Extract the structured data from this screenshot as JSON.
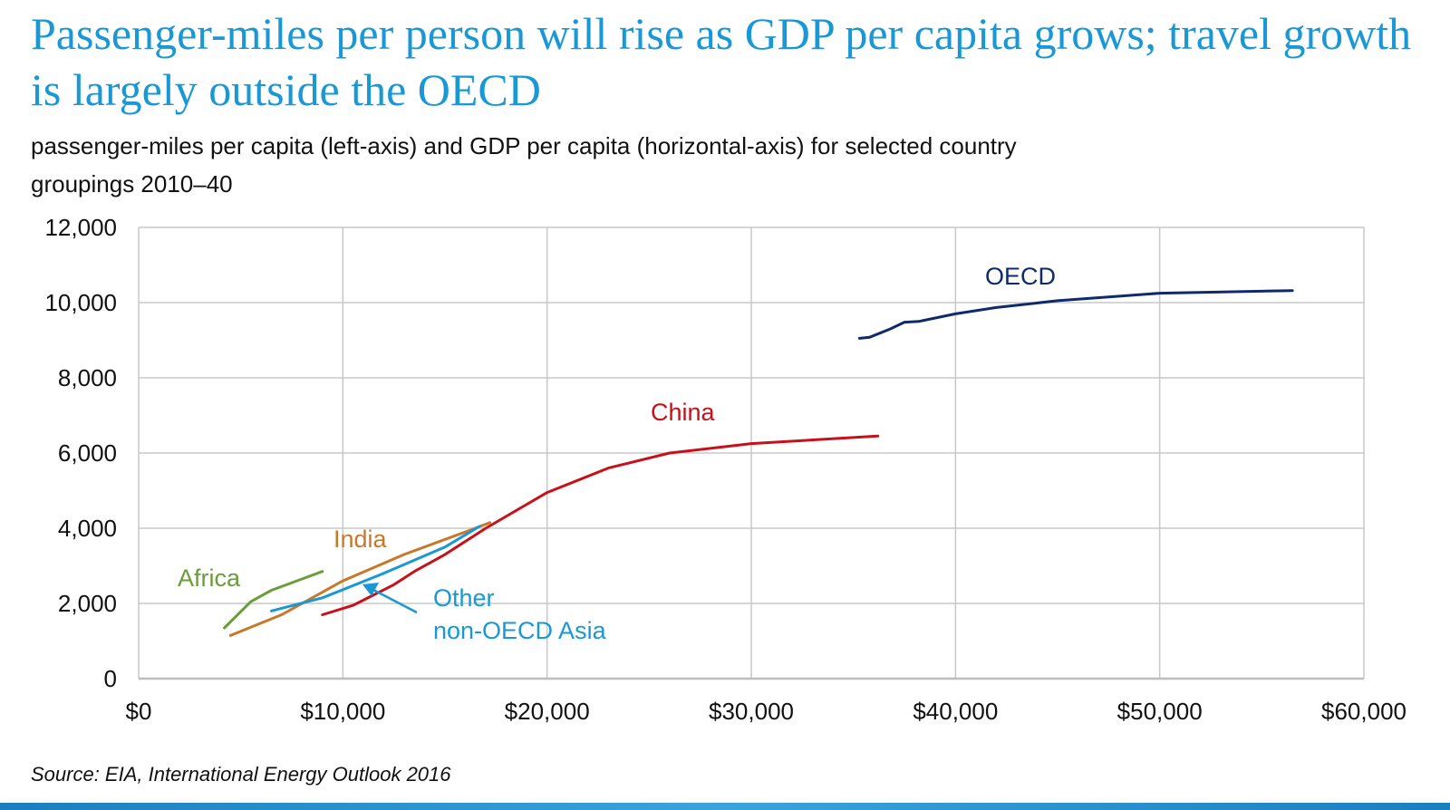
{
  "title": "Passenger-miles per person will rise as GDP per capita grows; travel growth is largely outside the OECD",
  "subtitle": "passenger-miles per capita (left-axis) and GDP per capita (horizontal-axis) for selected country groupings 2010–40",
  "source": "Source:  EIA, International Energy Outlook 2016",
  "chart_data": {
    "type": "line",
    "title": "",
    "xlabel": "",
    "ylabel": "",
    "xlim": [
      0,
      60000
    ],
    "ylim": [
      0,
      12000
    ],
    "grid": true,
    "x_ticks": [
      "$0",
      "$10,000",
      "$20,000",
      "$30,000",
      "$40,000",
      "$50,000",
      "$60,000"
    ],
    "y_ticks": [
      "0",
      "2,000",
      "4,000",
      "6,000",
      "8,000",
      "10,000",
      "12,000"
    ],
    "series": [
      {
        "name": "OECD",
        "color": "#0f2a6b",
        "points": [
          [
            35300,
            9050
          ],
          [
            35800,
            9080
          ],
          [
            36800,
            9300
          ],
          [
            37500,
            9480
          ],
          [
            38200,
            9500
          ],
          [
            40000,
            9700
          ],
          [
            42000,
            9870
          ],
          [
            45000,
            10050
          ],
          [
            50000,
            10250
          ],
          [
            56500,
            10320
          ]
        ]
      },
      {
        "name": "China",
        "color": "#c8101a",
        "points": [
          [
            9000,
            1700
          ],
          [
            10500,
            1950
          ],
          [
            12500,
            2500
          ],
          [
            13500,
            2850
          ],
          [
            15000,
            3300
          ],
          [
            17000,
            4000
          ],
          [
            20000,
            4950
          ],
          [
            23000,
            5600
          ],
          [
            26000,
            6000
          ],
          [
            30000,
            6250
          ],
          [
            36200,
            6450
          ]
        ]
      },
      {
        "name": "India",
        "color": "#c9782a",
        "points": [
          [
            4500,
            1150
          ],
          [
            7000,
            1700
          ],
          [
            10000,
            2600
          ],
          [
            13000,
            3300
          ],
          [
            16000,
            3900
          ],
          [
            17200,
            4150
          ]
        ]
      },
      {
        "name": "Africa",
        "color": "#6a9e3a",
        "points": [
          [
            4200,
            1350
          ],
          [
            5500,
            2050
          ],
          [
            6500,
            2350
          ],
          [
            8000,
            2650
          ],
          [
            9000,
            2850
          ]
        ]
      },
      {
        "name": "Other non-OECD Asia",
        "color": "#1a98d5",
        "points": [
          [
            6500,
            1800
          ],
          [
            9000,
            2150
          ],
          [
            12000,
            2800
          ],
          [
            15000,
            3500
          ],
          [
            16700,
            4050
          ]
        ]
      }
    ],
    "annotations": [
      {
        "text": "OECD",
        "series": "OECD"
      },
      {
        "text": "China",
        "series": "China"
      },
      {
        "text": "India",
        "series": "India"
      },
      {
        "text": "Africa",
        "series": "Africa"
      },
      {
        "text": "Other",
        "series": "Other non-OECD Asia"
      },
      {
        "text": "non-OECD Asia",
        "series": "Other non-OECD Asia"
      }
    ]
  }
}
